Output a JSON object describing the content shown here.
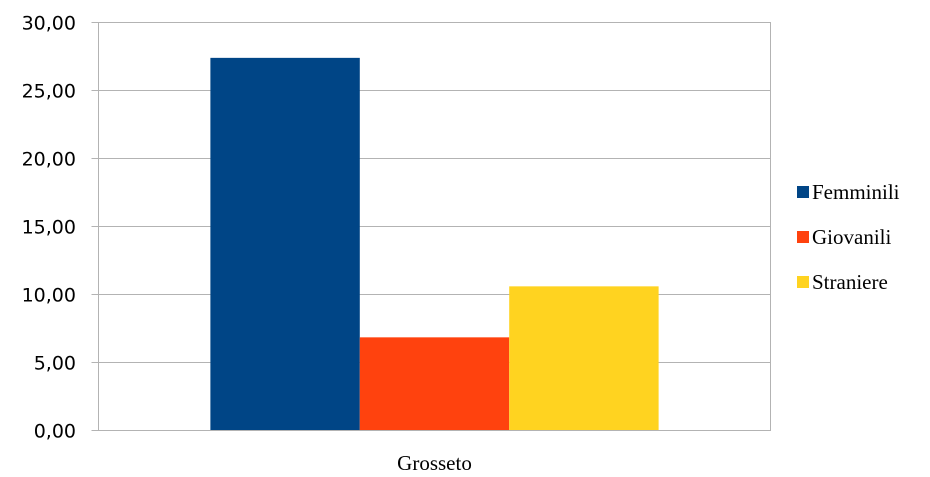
{
  "chart_data": {
    "type": "bar",
    "categories": [
      "Grosseto"
    ],
    "series": [
      {
        "name": "Femminili",
        "values": [
          27.4
        ],
        "color": "#004586"
      },
      {
        "name": "Giovanili",
        "values": [
          6.85
        ],
        "color": "#ff420e"
      },
      {
        "name": "Straniere",
        "values": [
          10.6
        ],
        "color": "#ffd320"
      }
    ],
    "ylim": [
      0,
      30
    ],
    "yticks": [
      "0,00",
      "5,00",
      "10,00",
      "15,00",
      "20,00",
      "25,00",
      "30,00"
    ],
    "ytick_values": [
      0,
      5,
      10,
      15,
      20,
      25,
      30
    ],
    "grid": true,
    "legend_position": "right"
  }
}
